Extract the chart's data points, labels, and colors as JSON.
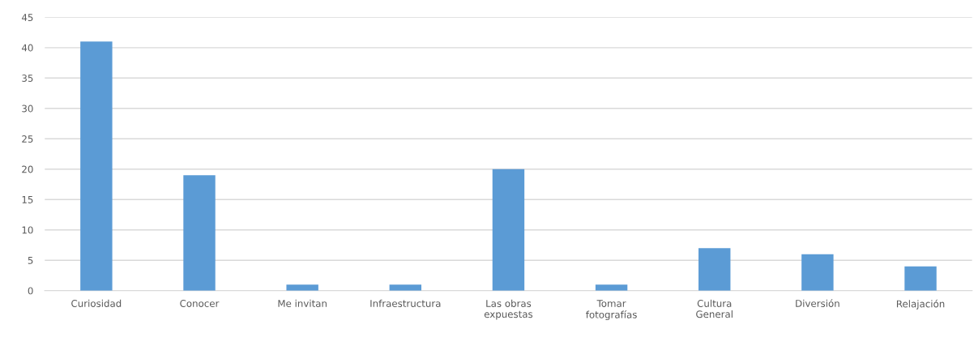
{
  "chart_data": {
    "type": "bar",
    "categories": [
      "Curiosidad",
      "Conocer",
      "Me invitan",
      "Infraestructura",
      "Las obras\nexpuestas",
      "Tomar\nfotografías",
      "Cultura\nGeneral",
      "Diversión",
      "Relajación"
    ],
    "values": [
      41,
      19,
      1,
      1,
      20,
      1,
      7,
      6,
      4
    ],
    "color": "#5b9bd5",
    "ylim": [
      0,
      45
    ],
    "yticks": [
      0,
      5,
      10,
      15,
      20,
      25,
      30,
      35,
      40,
      45
    ],
    "grid": "y",
    "legend": false
  }
}
